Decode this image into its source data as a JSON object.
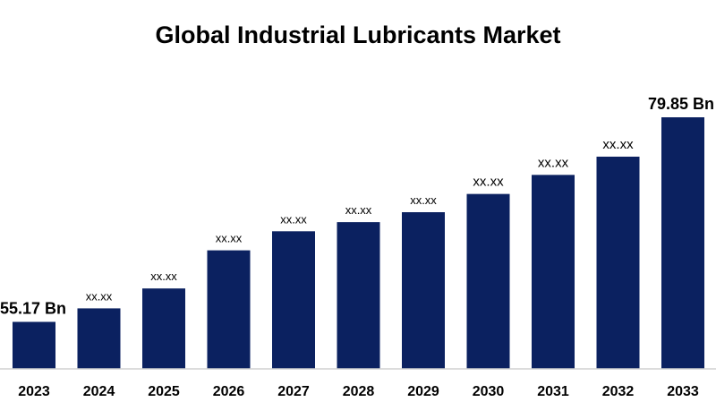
{
  "chart_data": {
    "type": "bar",
    "title": "Global Industrial Lubricants Market",
    "xlabel": "",
    "ylabel": "",
    "categories": [
      "2023",
      "2024",
      "2025",
      "2026",
      "2027",
      "2028",
      "2029",
      "2030",
      "2031",
      "2032",
      "2033"
    ],
    "values": [
      55.17,
      56.8,
      59.2,
      63.8,
      66.1,
      67.2,
      68.4,
      70.6,
      72.9,
      75.1,
      79.85
    ],
    "data_labels": [
      "55.17 Bn",
      "xx.xx",
      "xx.xx",
      "xx.xx",
      "xx.xx",
      "xx.xx",
      "xx.xx",
      "xx.xx",
      "xx.xx",
      "xx.xx",
      "79.85 Bn"
    ],
    "ylim": [
      49.5,
      82
    ],
    "grid": false,
    "legend": "none",
    "bar_color": "#0b2160",
    "axis_color": "#d0d0d0"
  }
}
